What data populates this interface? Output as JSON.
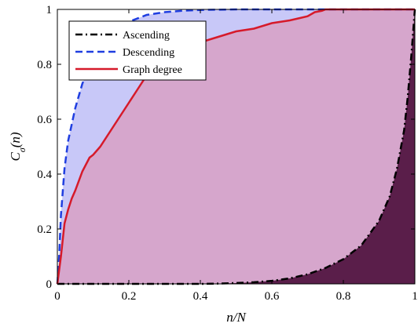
{
  "chart_data": {
    "type": "line",
    "xlabel": "n/N",
    "ylabel": "C_σ(n)",
    "xlim": [
      0,
      1
    ],
    "ylim": [
      0,
      1
    ],
    "xticks": [
      0,
      0.2,
      0.4,
      0.6,
      0.8,
      1
    ],
    "yticks": [
      0,
      0.2,
      0.4,
      0.6,
      0.8,
      1
    ],
    "xtick_labels": [
      "0",
      "0.2",
      "0.4",
      "0.6",
      "0.8",
      "1"
    ],
    "ytick_labels": [
      "0",
      "0.2",
      "0.4",
      "0.6",
      "0.8",
      "1"
    ],
    "grid": false,
    "legend_position": "top-left",
    "series": [
      {
        "name": "Ascending",
        "color": "#000000",
        "dash": "dashdot",
        "fill": "#5a1e4a",
        "x": [
          0,
          0.1,
          0.2,
          0.3,
          0.4,
          0.45,
          0.5,
          0.55,
          0.6,
          0.65,
          0.7,
          0.75,
          0.8,
          0.85,
          0.9,
          0.93,
          0.95,
          0.97,
          0.98,
          0.99,
          1.0
        ],
        "y": [
          0,
          0,
          0,
          0,
          0,
          0.001,
          0.003,
          0.006,
          0.011,
          0.02,
          0.035,
          0.058,
          0.09,
          0.14,
          0.23,
          0.32,
          0.42,
          0.56,
          0.68,
          0.83,
          1.0
        ]
      },
      {
        "name": "Descending",
        "color": "#1f3ee0",
        "dash": "dash",
        "fill": "#c8c8f8",
        "x": [
          0,
          0.005,
          0.01,
          0.02,
          0.03,
          0.05,
          0.07,
          0.1,
          0.13,
          0.15,
          0.2,
          0.25,
          0.3,
          0.35,
          0.4,
          0.5,
          0.6,
          0.7,
          0.8,
          0.9,
          1.0
        ],
        "y": [
          0,
          0.1,
          0.25,
          0.42,
          0.52,
          0.64,
          0.73,
          0.82,
          0.88,
          0.91,
          0.955,
          0.98,
          0.99,
          0.995,
          0.998,
          1.0,
          1.0,
          1.0,
          1.0,
          1.0,
          1.0
        ]
      },
      {
        "name": "Graph degree",
        "color": "#d61a2a",
        "dash": "solid",
        "fill": "#d6a6cc",
        "x": [
          0,
          0.01,
          0.02,
          0.03,
          0.04,
          0.05,
          0.07,
          0.09,
          0.1,
          0.12,
          0.15,
          0.17,
          0.2,
          0.22,
          0.25,
          0.28,
          0.3,
          0.35,
          0.4,
          0.45,
          0.5,
          0.55,
          0.6,
          0.65,
          0.7,
          0.72,
          0.74,
          0.75,
          0.8,
          0.9,
          1.0
        ],
        "y": [
          0,
          0.1,
          0.22,
          0.27,
          0.31,
          0.34,
          0.41,
          0.46,
          0.47,
          0.5,
          0.56,
          0.6,
          0.66,
          0.7,
          0.76,
          0.8,
          0.82,
          0.86,
          0.88,
          0.9,
          0.92,
          0.93,
          0.95,
          0.96,
          0.975,
          0.99,
          0.995,
          1.0,
          1.0,
          1.0,
          1.0
        ]
      }
    ]
  }
}
